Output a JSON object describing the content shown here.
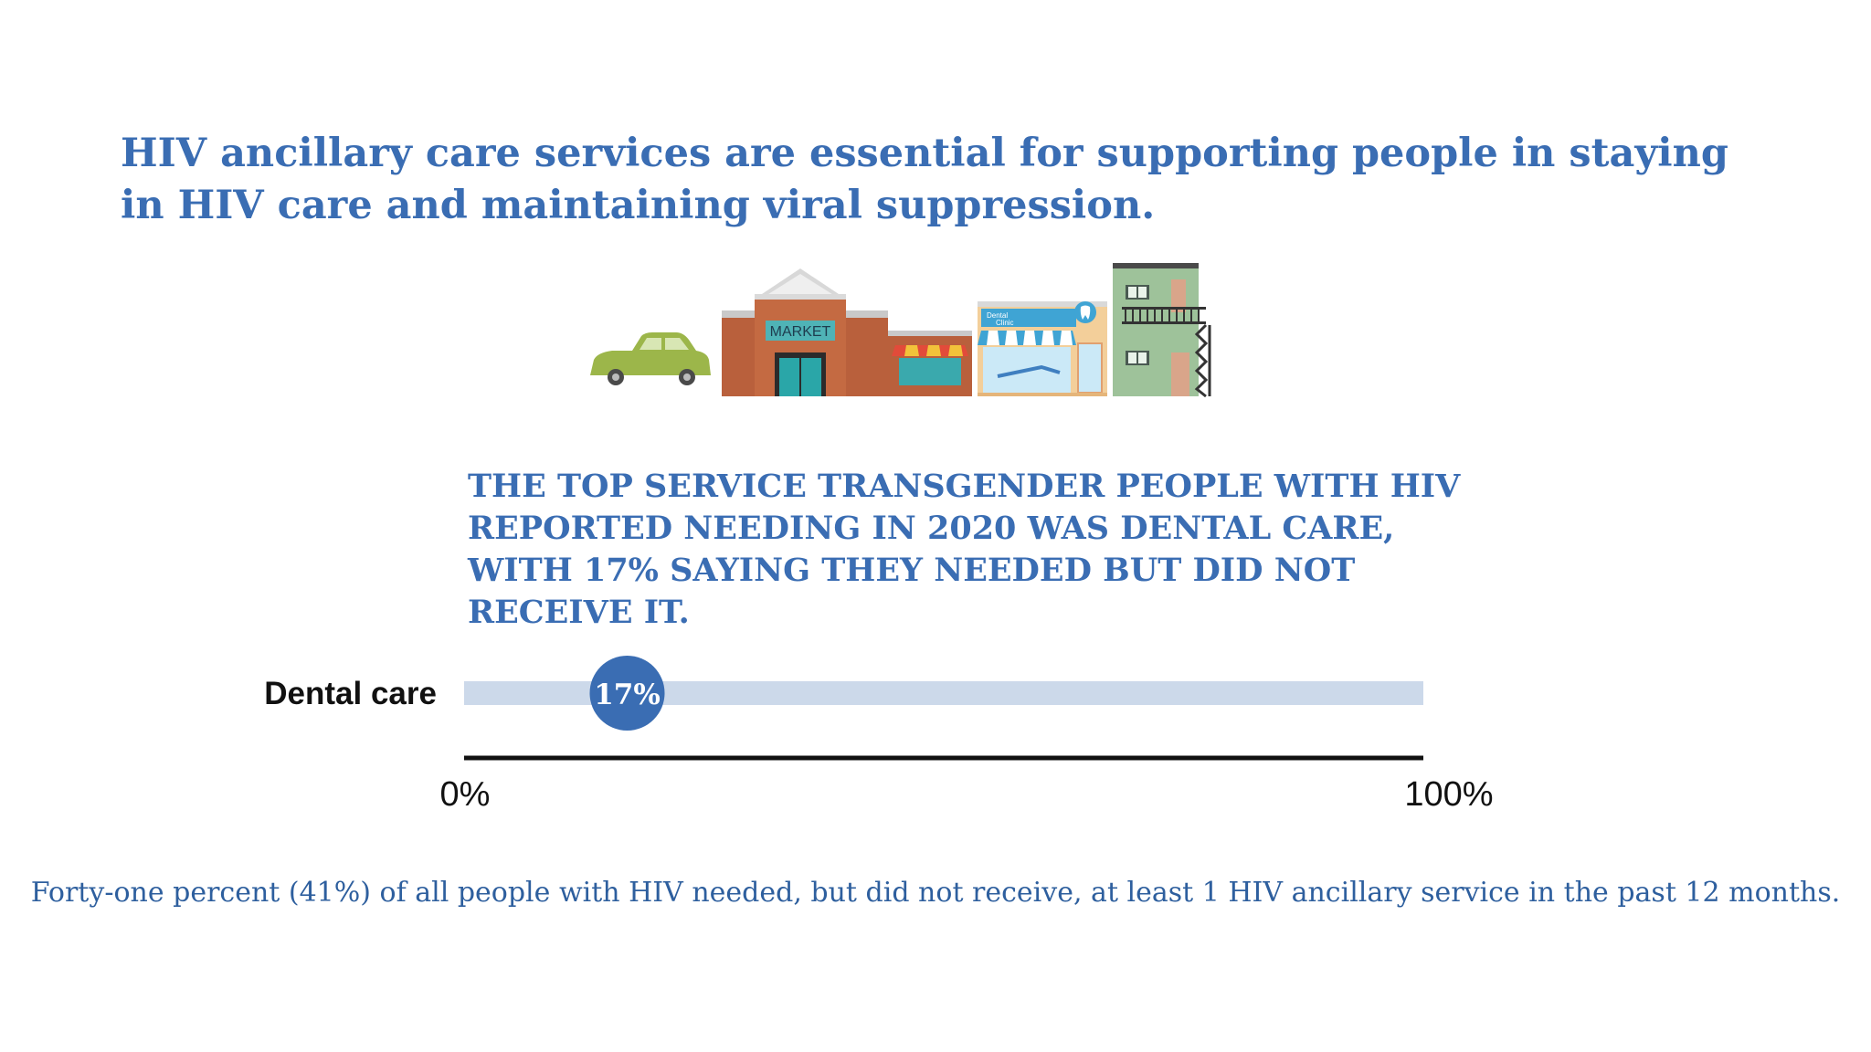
{
  "headline": "HIV ancillary care services are essential for supporting people in staying in HIV care and maintaining viral suppression.",
  "illustration": {
    "market_sign": "MARKET",
    "dental_sign_line1": "Dental",
    "dental_sign_line2": "Clinic"
  },
  "finding": "THE TOP SERVICE TRANSGENDER PEOPLE WITH HIV REPORTED NEEDING IN 2020 WAS DENTAL CARE, WITH 17% SAYING THEY NEEDED BUT DID NOT RECEIVE IT.",
  "chart_data": {
    "type": "bar",
    "categories": [
      "Dental care"
    ],
    "values": [
      17
    ],
    "value_labels": [
      "17%"
    ],
    "xlim": [
      0,
      100
    ],
    "tick_labels": [
      "0%",
      "100%"
    ],
    "colors": {
      "track": "#ccd9ea",
      "marker": "#3a6db3",
      "axis": "#111111"
    }
  },
  "footnote": "Forty-one percent (41%) of all people with HIV needed, but did not receive, at least 1 HIV ancillary service in the past 12 months."
}
